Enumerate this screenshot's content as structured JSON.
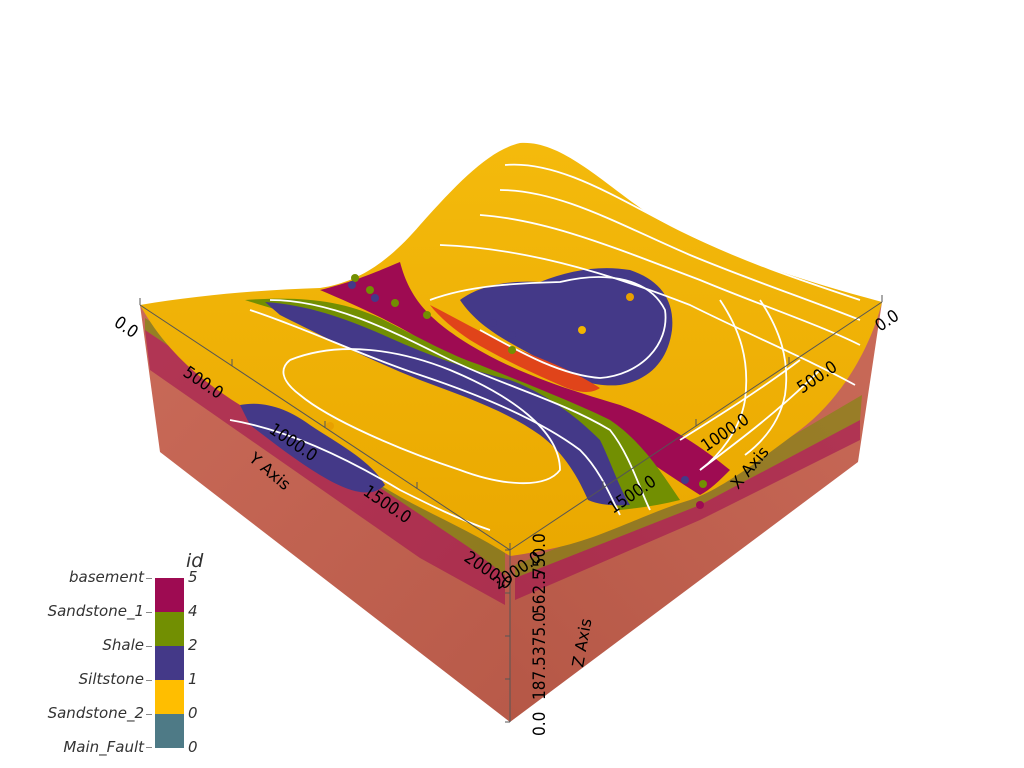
{
  "axes": {
    "x": {
      "title": "X Axis",
      "ticks": [
        "0.0",
        "500.0",
        "1000.0",
        "1500.0",
        "2000.0"
      ]
    },
    "y": {
      "title": "Y Axis",
      "ticks": [
        "0.0",
        "500.0",
        "1000.0",
        "1500.0",
        "2000.0"
      ]
    },
    "z": {
      "title": "Z Axis",
      "ticks": [
        "0.0",
        "187.5",
        "375.0",
        "562.5",
        "750.0"
      ]
    }
  },
  "legend": {
    "title": "id",
    "entries": [
      {
        "name": "basement",
        "id": "5",
        "color": "#9e0b52"
      },
      {
        "name": "Sandstone_1",
        "id": "4",
        "color": "#728f02"
      },
      {
        "name": "Shale",
        "id": "2",
        "color": "#443988"
      },
      {
        "name": "Siltstone",
        "id": "1",
        "color": "#ffbe00"
      },
      {
        "name": "Sandstone_2",
        "id": "0",
        "color": "#4e7a86"
      },
      {
        "name": "Main_Fault",
        "id": "",
        "color": ""
      }
    ]
  },
  "colors": {
    "box_side": "#c0614f",
    "basement": "#9e0b52",
    "sandstone_1": "#728f02",
    "shale": "#443988",
    "siltstone": "#e8a800",
    "sandstone_2": "#f2b400",
    "fault": "#e0441a",
    "contour": "#ffffff"
  }
}
